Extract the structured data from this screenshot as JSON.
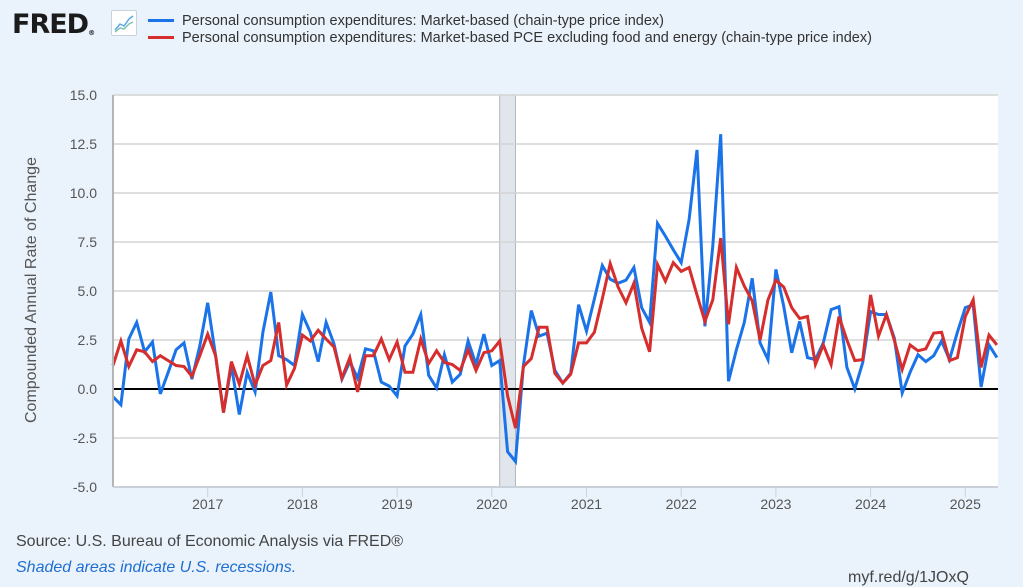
{
  "header": {
    "logo_text": "FRED",
    "logo_mark": "®",
    "graph_icon": "line-chart-icon"
  },
  "footer": {
    "source": "Source: U.S. Bureau of Economic Analysis via FRED®",
    "note": "Shaded areas indicate U.S. recessions.",
    "short_url": "myf.red/g/1JOxQ"
  },
  "chart_data": {
    "type": "line",
    "title": "",
    "xlabel": "",
    "ylabel": "Compounded Annual Rate of Change",
    "ylim": [
      -5.0,
      15.0
    ],
    "yticks": [
      "15.0",
      "12.5",
      "10.0",
      "7.5",
      "5.0",
      "2.5",
      "0.0",
      "-2.5",
      "-5.0"
    ],
    "ytick_values": [
      15,
      12.5,
      10,
      7.5,
      5,
      2.5,
      0,
      -2.5,
      -5
    ],
    "xticks": [
      "2017",
      "2018",
      "2019",
      "2020",
      "2021",
      "2022",
      "2023",
      "2024",
      "2025"
    ],
    "x_start": "2016-01",
    "x_end": "2025-05",
    "frequency": "monthly",
    "grid": true,
    "zero_line": true,
    "legend_position": "top",
    "recessions": [
      {
        "start": "2020-02",
        "end": "2020-04"
      }
    ],
    "series": [
      {
        "name": "Personal consumption expenditures: Market-based (chain-type price index)",
        "color": "#1a73e8",
        "values": [
          -0.4,
          -0.8,
          2.55,
          3.4,
          1.9,
          2.4,
          -0.25,
          0.85,
          2.0,
          2.35,
          0.5,
          2.2,
          4.4,
          1.7,
          -1.2,
          1.2,
          -1.3,
          0.85,
          -0.15,
          2.9,
          4.95,
          1.7,
          1.5,
          1.2,
          3.8,
          2.9,
          1.4,
          3.4,
          2.3,
          0.5,
          1.4,
          0.55,
          2.05,
          1.95,
          0.35,
          0.15,
          -0.35,
          2.2,
          2.8,
          3.8,
          0.7,
          0.05,
          1.75,
          0.35,
          0.75,
          2.45,
          1.25,
          2.8,
          1.2,
          1.45,
          -3.2,
          -3.7,
          1.2,
          4.0,
          2.7,
          2.85,
          0.95,
          0.3,
          0.8,
          4.3,
          2.95,
          4.6,
          6.3,
          5.6,
          5.4,
          5.55,
          6.2,
          4.15,
          3.4,
          8.45,
          7.8,
          7.1,
          6.45,
          8.65,
          12.2,
          3.2,
          7.3,
          13.0,
          0.4,
          2.0,
          3.4,
          5.65,
          2.35,
          1.5,
          6.1,
          4.2,
          1.85,
          3.45,
          1.6,
          1.5,
          2.35,
          4.05,
          4.2,
          1.1,
          0.0,
          1.35,
          3.95,
          3.8,
          3.8,
          2.6,
          -0.2,
          0.85,
          1.75,
          1.4,
          1.7,
          2.45,
          1.5,
          2.9,
          4.15,
          4.3,
          0.1,
          2.25,
          1.6
        ]
      },
      {
        "name": "Personal consumption expenditures: Market-based PCE excluding food and energy (chain-type price index)",
        "color": "#d62d2d",
        "values": [
          1.2,
          2.45,
          1.15,
          2.0,
          1.9,
          1.4,
          1.7,
          1.45,
          1.2,
          1.15,
          0.65,
          1.7,
          2.8,
          1.7,
          -1.2,
          1.4,
          0.25,
          1.7,
          0.2,
          1.2,
          1.45,
          3.4,
          0.2,
          1.05,
          2.75,
          2.45,
          3.0,
          2.55,
          2.15,
          0.55,
          1.6,
          -0.15,
          1.7,
          1.7,
          2.55,
          1.5,
          2.4,
          0.85,
          0.85,
          2.55,
          1.3,
          1.95,
          1.35,
          1.25,
          0.95,
          2.0,
          0.95,
          1.85,
          1.95,
          2.45,
          -0.35,
          -2.0,
          1.15,
          1.55,
          3.15,
          3.15,
          0.8,
          0.3,
          0.75,
          2.35,
          2.35,
          2.9,
          4.6,
          6.4,
          5.2,
          4.4,
          5.4,
          3.1,
          1.9,
          6.35,
          5.5,
          6.45,
          6.0,
          6.2,
          4.8,
          3.45,
          4.55,
          7.7,
          3.3,
          6.2,
          5.25,
          4.5,
          2.5,
          4.55,
          5.55,
          5.2,
          4.15,
          3.6,
          3.7,
          1.25,
          2.25,
          1.25,
          3.7,
          2.5,
          1.45,
          1.5,
          4.8,
          2.7,
          3.8,
          2.5,
          1.0,
          2.25,
          1.95,
          2.05,
          2.85,
          2.9,
          1.45,
          1.6,
          3.7,
          4.55,
          1.1,
          2.75,
          2.25
        ]
      }
    ]
  }
}
